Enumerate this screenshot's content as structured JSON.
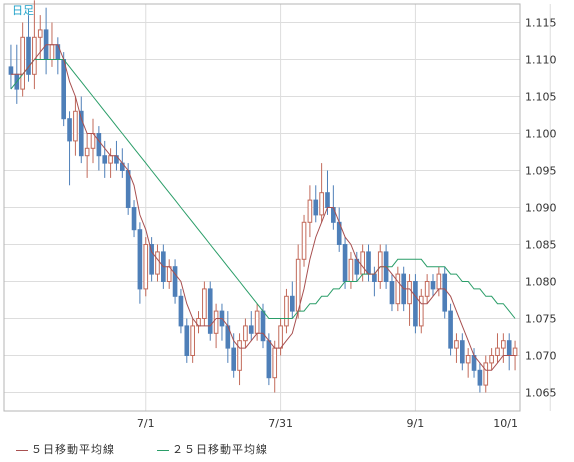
{
  "chart_data": {
    "type": "candlestick",
    "timeframe_label": "日足",
    "x_tick_labels": [
      "7/1",
      "7/31",
      "9/1",
      "10/1"
    ],
    "x_tick_index": [
      23,
      46,
      69,
      92
    ],
    "y_ticks": [
      1.065,
      1.07,
      1.075,
      1.08,
      1.085,
      1.09,
      1.095,
      1.1,
      1.105,
      1.11,
      1.115
    ],
    "y_tick_labels": [
      "1.065",
      "1.070",
      "1.075",
      "1.080",
      "1.085",
      "1.090",
      "1.095",
      "1.100",
      "1.105",
      "1.110",
      "1.115"
    ],
    "ylim": [
      1.0625,
      1.1175
    ],
    "grid": true,
    "colors": {
      "up": "#c26a5a",
      "down": "#4e7fb8",
      "ma5": "#a85050",
      "ma25": "#2a9d68",
      "grid": "#dddddd",
      "axis_text": "#333333",
      "label_accent": "#1ea0c8"
    },
    "series": [
      {
        "name": "５日移動平均線",
        "color": "#a85050"
      },
      {
        "name": "２５日移動平均線",
        "color": "#2a9d68"
      }
    ],
    "ohlc": [
      [
        1.109,
        1.112,
        1.106,
        1.108
      ],
      [
        1.108,
        1.112,
        1.104,
        1.106
      ],
      [
        1.106,
        1.115,
        1.105,
        1.113
      ],
      [
        1.113,
        1.116,
        1.107,
        1.108
      ],
      [
        1.108,
        1.118,
        1.106,
        1.113
      ],
      [
        1.113,
        1.116,
        1.11,
        1.114
      ],
      [
        1.114,
        1.117,
        1.108,
        1.11
      ],
      [
        1.11,
        1.115,
        1.109,
        1.112
      ],
      [
        1.112,
        1.113,
        1.108,
        1.11
      ],
      [
        1.11,
        1.111,
        1.101,
        1.102
      ],
      [
        1.102,
        1.103,
        1.093,
        1.099
      ],
      [
        1.099,
        1.105,
        1.097,
        1.103
      ],
      [
        1.103,
        1.105,
        1.096,
        1.097
      ],
      [
        1.097,
        1.1,
        1.094,
        1.098
      ],
      [
        1.098,
        1.102,
        1.096,
        1.1
      ],
      [
        1.1,
        1.101,
        1.095,
        1.097
      ],
      [
        1.097,
        1.099,
        1.094,
        1.096
      ],
      [
        1.096,
        1.098,
        1.094,
        1.097
      ],
      [
        1.097,
        1.099,
        1.095,
        1.096
      ],
      [
        1.096,
        1.098,
        1.094,
        1.095
      ],
      [
        1.095,
        1.096,
        1.089,
        1.09
      ],
      [
        1.09,
        1.091,
        1.086,
        1.087
      ],
      [
        1.087,
        1.088,
        1.077,
        1.079
      ],
      [
        1.079,
        1.086,
        1.078,
        1.085
      ],
      [
        1.085,
        1.086,
        1.08,
        1.081
      ],
      [
        1.081,
        1.085,
        1.08,
        1.084
      ],
      [
        1.084,
        1.085,
        1.079,
        1.08
      ],
      [
        1.08,
        1.083,
        1.079,
        1.082
      ],
      [
        1.082,
        1.083,
        1.077,
        1.078
      ],
      [
        1.078,
        1.079,
        1.073,
        1.074
      ],
      [
        1.074,
        1.075,
        1.069,
        1.07
      ],
      [
        1.07,
        1.075,
        1.069,
        1.074
      ],
      [
        1.074,
        1.076,
        1.073,
        1.075
      ],
      [
        1.075,
        1.08,
        1.074,
        1.079
      ],
      [
        1.079,
        1.08,
        1.072,
        1.073
      ],
      [
        1.073,
        1.077,
        1.071,
        1.076
      ],
      [
        1.076,
        1.077,
        1.072,
        1.074
      ],
      [
        1.074,
        1.076,
        1.069,
        1.071
      ],
      [
        1.071,
        1.073,
        1.067,
        1.068
      ],
      [
        1.068,
        1.073,
        1.066,
        1.072
      ],
      [
        1.072,
        1.075,
        1.071,
        1.074
      ],
      [
        1.074,
        1.076,
        1.072,
        1.073
      ],
      [
        1.073,
        1.077,
        1.072,
        1.076
      ],
      [
        1.076,
        1.077,
        1.071,
        1.072
      ],
      [
        1.072,
        1.073,
        1.066,
        1.067
      ],
      [
        1.067,
        1.072,
        1.065,
        1.071
      ],
      [
        1.071,
        1.075,
        1.07,
        1.074
      ],
      [
        1.074,
        1.079,
        1.073,
        1.078
      ],
      [
        1.078,
        1.08,
        1.075,
        1.076
      ],
      [
        1.076,
        1.085,
        1.075,
        1.083
      ],
      [
        1.083,
        1.089,
        1.082,
        1.088
      ],
      [
        1.088,
        1.093,
        1.086,
        1.091
      ],
      [
        1.091,
        1.093,
        1.088,
        1.089
      ],
      [
        1.089,
        1.096,
        1.088,
        1.092
      ],
      [
        1.092,
        1.095,
        1.089,
        1.09
      ],
      [
        1.09,
        1.093,
        1.087,
        1.088
      ],
      [
        1.088,
        1.09,
        1.084,
        1.085
      ],
      [
        1.085,
        1.086,
        1.079,
        1.08
      ],
      [
        1.08,
        1.084,
        1.079,
        1.083
      ],
      [
        1.083,
        1.084,
        1.08,
        1.081
      ],
      [
        1.081,
        1.085,
        1.08,
        1.084
      ],
      [
        1.084,
        1.085,
        1.08,
        1.081
      ],
      [
        1.081,
        1.082,
        1.078,
        1.08
      ],
      [
        1.08,
        1.085,
        1.079,
        1.084
      ],
      [
        1.084,
        1.085,
        1.079,
        1.08
      ],
      [
        1.08,
        1.081,
        1.076,
        1.077
      ],
      [
        1.077,
        1.082,
        1.076,
        1.081
      ],
      [
        1.081,
        1.082,
        1.076,
        1.077
      ],
      [
        1.077,
        1.081,
        1.074,
        1.08
      ],
      [
        1.08,
        1.081,
        1.073,
        1.074
      ],
      [
        1.074,
        1.079,
        1.073,
        1.078
      ],
      [
        1.078,
        1.081,
        1.077,
        1.08
      ],
      [
        1.08,
        1.081,
        1.078,
        1.079
      ],
      [
        1.079,
        1.082,
        1.078,
        1.081
      ],
      [
        1.081,
        1.082,
        1.075,
        1.076
      ],
      [
        1.076,
        1.077,
        1.07,
        1.071
      ],
      [
        1.071,
        1.073,
        1.069,
        1.072
      ],
      [
        1.072,
        1.073,
        1.068,
        1.069
      ],
      [
        1.069,
        1.071,
        1.067,
        1.07
      ],
      [
        1.07,
        1.071,
        1.067,
        1.068
      ],
      [
        1.068,
        1.069,
        1.065,
        1.066
      ],
      [
        1.066,
        1.07,
        1.065,
        1.069
      ],
      [
        1.069,
        1.071,
        1.068,
        1.07
      ],
      [
        1.07,
        1.073,
        1.069,
        1.071
      ],
      [
        1.071,
        1.073,
        1.069,
        1.072
      ],
      [
        1.072,
        1.073,
        1.068,
        1.07
      ],
      [
        1.07,
        1.072,
        1.068,
        1.071
      ]
    ],
    "ma5": [
      1.108,
      1.108,
      1.108,
      1.109,
      1.11,
      1.111,
      1.112,
      1.112,
      1.112,
      1.11,
      1.107,
      1.105,
      1.102,
      1.1,
      1.1,
      1.099,
      1.098,
      1.097,
      1.097,
      1.096,
      1.095,
      1.093,
      1.089,
      1.087,
      1.084,
      1.083,
      1.082,
      1.082,
      1.081,
      1.08,
      1.077,
      1.075,
      1.074,
      1.074,
      1.074,
      1.075,
      1.075,
      1.074,
      1.072,
      1.071,
      1.071,
      1.072,
      1.073,
      1.073,
      1.072,
      1.071,
      1.071,
      1.072,
      1.073,
      1.076,
      1.079,
      1.083,
      1.086,
      1.088,
      1.09,
      1.09,
      1.088,
      1.086,
      1.085,
      1.083,
      1.082,
      1.081,
      1.081,
      1.082,
      1.082,
      1.081,
      1.08,
      1.079,
      1.079,
      1.078,
      1.077,
      1.077,
      1.078,
      1.079,
      1.079,
      1.078,
      1.076,
      1.074,
      1.072,
      1.07,
      1.069,
      1.068,
      1.068,
      1.069,
      1.07,
      1.07,
      1.07
    ],
    "ma25": [
      1.106,
      1.107,
      1.108,
      1.109,
      1.11,
      1.11,
      1.11,
      1.11,
      1.11,
      1.11,
      1.109,
      1.108,
      1.107,
      1.106,
      1.105,
      1.104,
      1.103,
      1.102,
      1.101,
      1.1,
      1.099,
      1.098,
      1.097,
      1.096,
      1.095,
      1.094,
      1.093,
      1.092,
      1.091,
      1.09,
      1.089,
      1.088,
      1.087,
      1.086,
      1.085,
      1.084,
      1.083,
      1.082,
      1.081,
      1.08,
      1.079,
      1.078,
      1.077,
      1.076,
      1.075,
      1.075,
      1.075,
      1.075,
      1.075,
      1.076,
      1.076,
      1.077,
      1.077,
      1.078,
      1.078,
      1.079,
      1.079,
      1.08,
      1.08,
      1.08,
      1.081,
      1.081,
      1.081,
      1.082,
      1.082,
      1.082,
      1.083,
      1.083,
      1.083,
      1.083,
      1.083,
      1.082,
      1.082,
      1.082,
      1.082,
      1.081,
      1.081,
      1.08,
      1.08,
      1.079,
      1.079,
      1.078,
      1.078,
      1.077,
      1.077,
      1.076,
      1.075
    ]
  }
}
